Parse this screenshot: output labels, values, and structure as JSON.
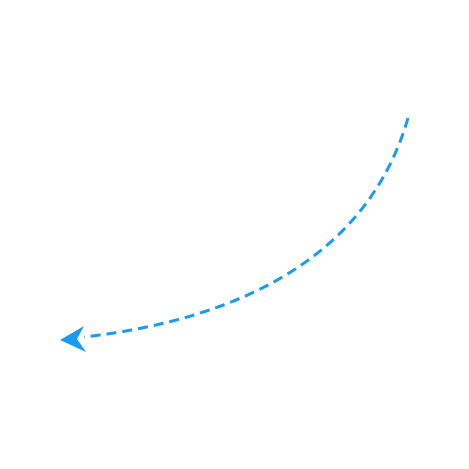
{
  "graphic": {
    "name": "curved-dashed-arrow",
    "icon": "curved-arrow-left-icon",
    "stroke_color": "#1a9af0",
    "line_style": "dashed",
    "direction": "left"
  }
}
